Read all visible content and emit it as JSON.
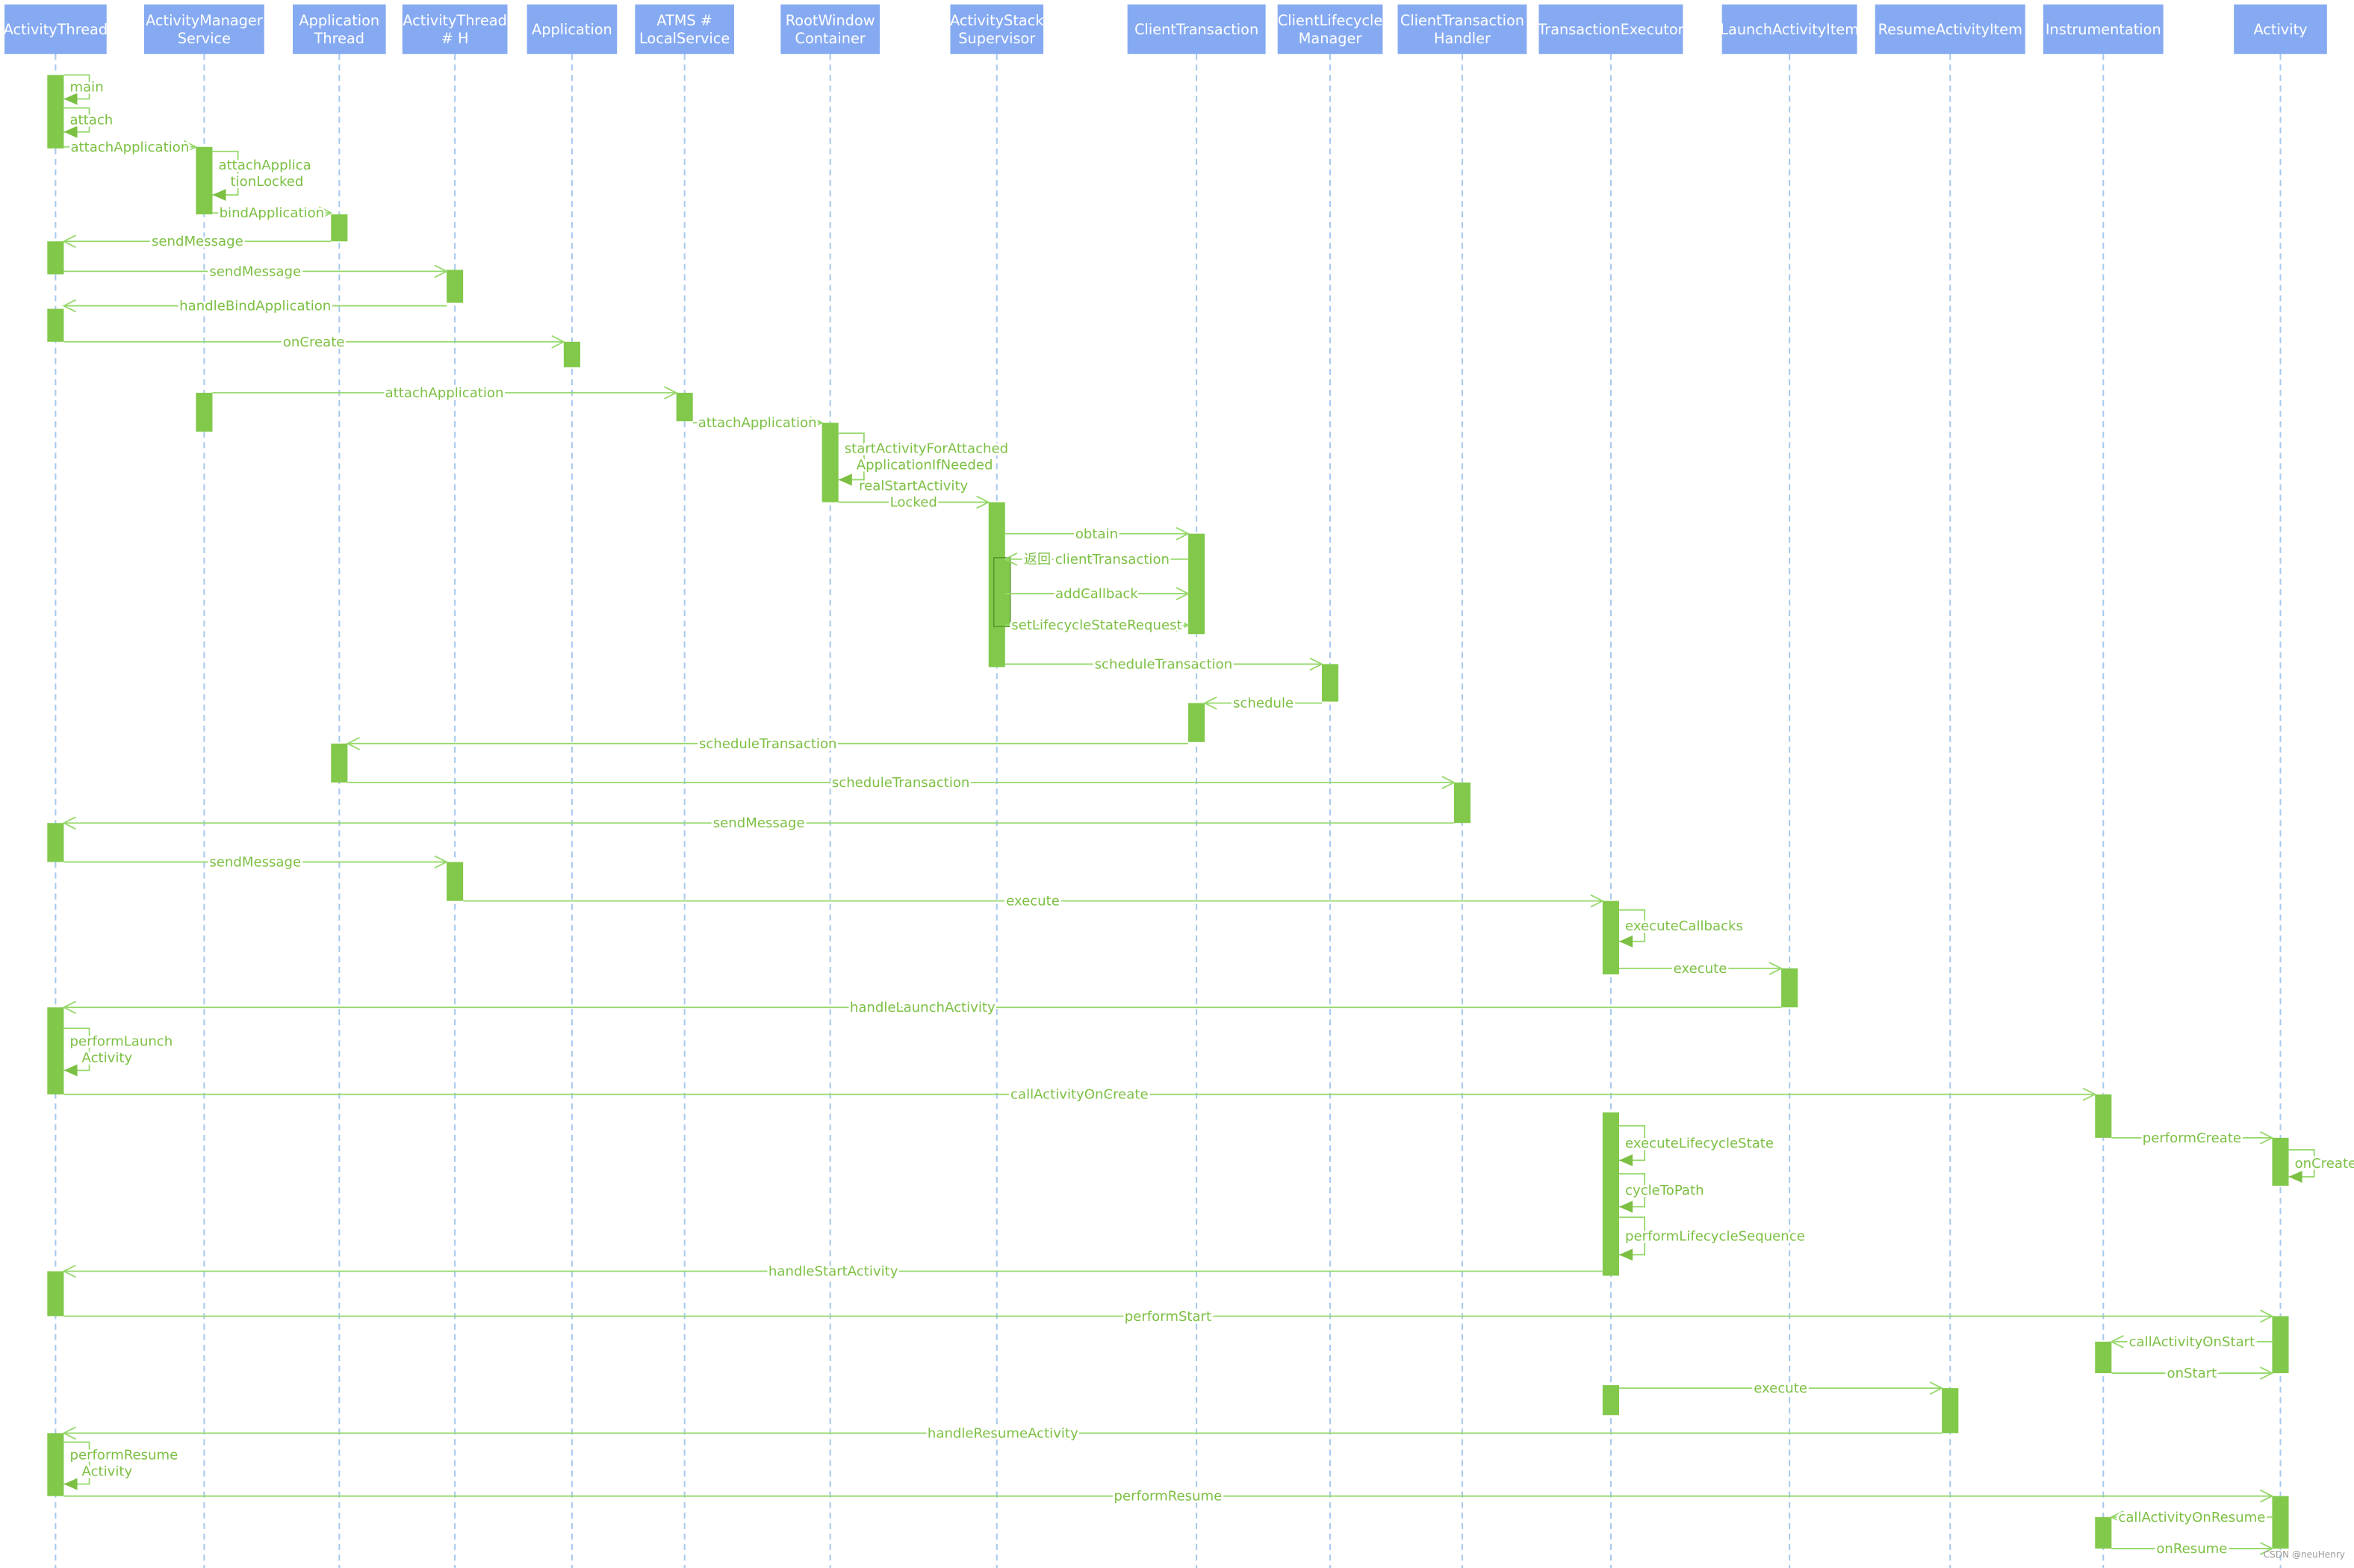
{
  "participants": [
    {
      "label": [
        "ActivityThread"
      ]
    },
    {
      "label": [
        "ActivityManager",
        "Service"
      ]
    },
    {
      "label": [
        "Application",
        "Thread"
      ]
    },
    {
      "label": [
        "ActivityThread",
        "# H"
      ]
    },
    {
      "label": [
        "Application"
      ]
    },
    {
      "label": [
        "ATMS #",
        "LocalService"
      ]
    },
    {
      "label": [
        "RootWindow",
        "Container"
      ]
    },
    {
      "label": [
        "ActivityStack",
        "Supervisor"
      ]
    },
    {
      "label": [
        "ClientTransaction"
      ]
    },
    {
      "label": [
        "ClientLifecycle",
        "Manager"
      ]
    },
    {
      "label": [
        "ClientTransaction",
        "Handler"
      ]
    },
    {
      "label": [
        "TransactionExecutor"
      ]
    },
    {
      "label": [
        "LaunchActivityItem"
      ]
    },
    {
      "label": [
        "ResumeActivityItem"
      ]
    },
    {
      "label": [
        "Instrumentation"
      ]
    },
    {
      "label": [
        "Activity"
      ]
    }
  ],
  "messages": [
    {
      "label": [
        "main"
      ]
    },
    {
      "label": [
        "attach"
      ]
    },
    {
      "label": [
        "attachApplication"
      ]
    },
    {
      "label": [
        "attachApplica",
        "tionLocked"
      ]
    },
    {
      "label": [
        "bindApplication"
      ]
    },
    {
      "label": [
        "sendMessage"
      ]
    },
    {
      "label": [
        "sendMessage"
      ]
    },
    {
      "label": [
        "handleBindApplication"
      ]
    },
    {
      "label": [
        "onCreate"
      ]
    },
    {
      "label": [
        "attachApplication"
      ]
    },
    {
      "label": [
        "attachApplication"
      ]
    },
    {
      "label": [
        "startActivityForAttached",
        "ApplicationIfNeeded"
      ]
    },
    {
      "label": [
        "realStartActivity",
        "Locked"
      ]
    },
    {
      "label": [
        "obtain"
      ]
    },
    {
      "label": [
        "返回 clientTransaction"
      ]
    },
    {
      "label": [
        "addCallback"
      ]
    },
    {
      "label": [
        "setLifecycleStateRequest"
      ]
    },
    {
      "label": [
        "scheduleTransaction"
      ]
    },
    {
      "label": [
        "schedule"
      ]
    },
    {
      "label": [
        "scheduleTransaction"
      ]
    },
    {
      "label": [
        "scheduleTransaction"
      ]
    },
    {
      "label": [
        "sendMessage"
      ]
    },
    {
      "label": [
        "sendMessage"
      ]
    },
    {
      "label": [
        "execute"
      ]
    },
    {
      "label": [
        "executeCallbacks"
      ]
    },
    {
      "label": [
        "execute"
      ]
    },
    {
      "label": [
        "handleLaunchActivity"
      ]
    },
    {
      "label": [
        "performLaunch",
        "Activity"
      ]
    },
    {
      "label": [
        "callActivityOnCreate"
      ]
    },
    {
      "label": [
        "performCreate"
      ]
    },
    {
      "label": [
        "onCreate"
      ]
    },
    {
      "label": [
        "executeLifecycleState"
      ]
    },
    {
      "label": [
        "cycleToPath"
      ]
    },
    {
      "label": [
        "performLifecycleSequence"
      ]
    },
    {
      "label": [
        "handleStartActivity"
      ]
    },
    {
      "label": [
        "performStart"
      ]
    },
    {
      "label": [
        "callActivityOnStart"
      ]
    },
    {
      "label": [
        "onStart"
      ]
    },
    {
      "label": [
        "execute"
      ]
    },
    {
      "label": [
        "handleResumeActivity"
      ]
    },
    {
      "label": [
        "performResume",
        "Activity"
      ]
    },
    {
      "label": [
        "performResume"
      ]
    },
    {
      "label": [
        "callActivityOnResume"
      ]
    },
    {
      "label": [
        "onResume"
      ]
    }
  ],
  "watermark": "CSDN @neuHenry"
}
